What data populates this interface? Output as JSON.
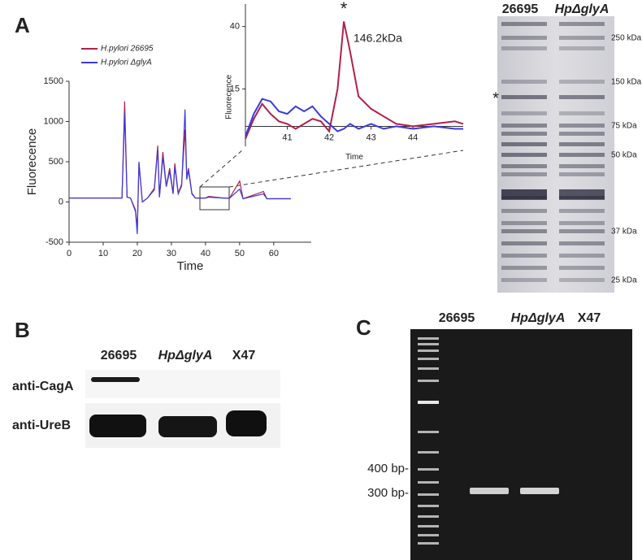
{
  "chart_data": [
    {
      "type": "line",
      "xlabel": "Time",
      "ylabel": "Fluorecence",
      "x": [
        0,
        15.5,
        16.3,
        17,
        18,
        19.5,
        20,
        20.5,
        21.5,
        23,
        25,
        26,
        26.5,
        27.5,
        28.5,
        29.5,
        30.5,
        31,
        32,
        33,
        34,
        34.5,
        35,
        36,
        37,
        40,
        41,
        45,
        47,
        50,
        51,
        57,
        58,
        65
      ],
      "series": [
        {
          "name": "H.pylori 26695",
          "color": "#b0204a",
          "values": [
            50,
            50,
            1250,
            60,
            50,
            -100,
            -350,
            480,
            0,
            50,
            170,
            700,
            60,
            620,
            200,
            420,
            110,
            480,
            110,
            220,
            900,
            300,
            420,
            110,
            50,
            50,
            70,
            50,
            45,
            260,
            40,
            130,
            40,
            40
          ]
        },
        {
          "name": "H.pylori ΔglyA",
          "color": "#3a3adc",
          "values": [
            50,
            50,
            1100,
            60,
            50,
            -120,
            -400,
            500,
            0,
            50,
            150,
            650,
            60,
            560,
            190,
            380,
            100,
            440,
            100,
            200,
            1150,
            280,
            390,
            100,
            50,
            50,
            60,
            50,
            45,
            160,
            40,
            100,
            40,
            40
          ]
        }
      ],
      "xlim": [
        0,
        71
      ],
      "ylim": [
        -500,
        1500
      ],
      "xticks": [
        0,
        10,
        20,
        30,
        40,
        50,
        60
      ],
      "yticks": [
        -500,
        0,
        500,
        1000,
        1500
      ]
    },
    {
      "type": "line",
      "xlabel": "Time",
      "ylabel": "Fluorecence",
      "annotation": "146.2kDa",
      "marker": "*",
      "x": [
        40,
        40.2,
        40.4,
        40.6,
        40.8,
        41,
        41.2,
        41.4,
        41.6,
        41.8,
        42,
        42.2,
        42.35,
        42.5,
        42.7,
        43,
        43.3,
        43.6,
        44,
        44.5,
        45,
        45.2
      ],
      "series": [
        {
          "color": "#b0204a",
          "values": [
            -5,
            3,
            9,
            5,
            2,
            1,
            -1,
            1,
            3,
            2,
            -2,
            15,
            42,
            30,
            12,
            7,
            4,
            1,
            0,
            1,
            2,
            1
          ]
        },
        {
          "color": "#3a3adc",
          "values": [
            -4,
            5,
            11,
            10,
            6,
            5,
            8,
            6,
            8,
            4,
            1,
            -2,
            -1,
            1,
            -1,
            1,
            -1,
            0,
            -1,
            0,
            -1,
            -1
          ]
        }
      ],
      "xlim": [
        40,
        45.2
      ],
      "ylim": [
        -8,
        49
      ],
      "xticks": [
        41,
        42,
        43,
        44
      ],
      "yticks": [
        15,
        40
      ]
    }
  ],
  "panels": {
    "A": {
      "label": "A",
      "lanes": [
        "26695",
        "HpΔglyA"
      ],
      "marker": "*",
      "sizes": [
        "250 kDa",
        "150 kDa",
        "75 kDa",
        "50 kDa",
        "37 kDa",
        "25 kDa"
      ]
    },
    "B": {
      "label": "B",
      "lanes": [
        "26695",
        "HpΔglyA",
        "X47"
      ],
      "rows": [
        "anti-CagA",
        "anti-UreB"
      ]
    },
    "C": {
      "label": "C",
      "lanes": [
        "26695",
        "HpΔglyA",
        "X47"
      ],
      "sizes": [
        "400 bp-",
        "300 bp-"
      ]
    }
  }
}
